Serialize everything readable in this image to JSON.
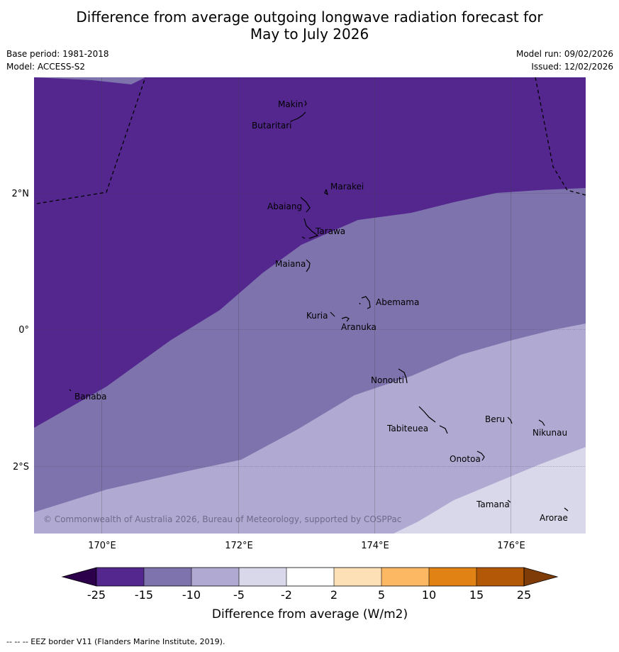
{
  "title": {
    "line1": "Difference from average outgoing longwave radiation forecast for",
    "line2": "May to July 2026"
  },
  "meta": {
    "base_period": "Base period: 1981-2018",
    "model": "Model: ACCESS-S2",
    "model_run": "Model run: 09/02/2026",
    "issued": "Issued: 12/02/2026"
  },
  "map": {
    "lon_labels": [
      "170°E",
      "172°E",
      "174°E",
      "176°E"
    ],
    "lat_labels": [
      "2°N",
      "0°",
      "2°S"
    ],
    "places": [
      "Makin",
      "Butaritari",
      "Marakei",
      "Abaiang",
      "Tarawa",
      "Maiana",
      "Abemama",
      "Kuria",
      "Aranuka",
      "Nonouti",
      "Banaba",
      "Tabiteuea",
      "Beru",
      "Nikunau",
      "Onotoa",
      "Tamana",
      "Arorae"
    ],
    "copyright": "© Commonwealth of Australia 2026, Bureau of Meteorology, supported by COSPPac",
    "colors": {
      "lt_-15": "#54278f",
      "-15_-10": "#7f73ad",
      "-10_-5": "#b0aad2",
      "-5_-2": "#d9d8ea",
      "-2_2": "#ffffff",
      "2_5": "#fee0b6",
      "5_10": "#fdb863",
      "10_15": "#e08214",
      "15_25": "#b35806",
      "under": "#2d004b",
      "over": "#7f3b08"
    }
  },
  "colorbar": {
    "ticks": [
      "-25",
      "-15",
      "-10",
      "-5",
      "-2",
      "2",
      "5",
      "10",
      "15",
      "25"
    ],
    "label": "Difference from average (W/m2)"
  },
  "footer": {
    "legend": "--  --  -- EEZ border V11 (Flanders Marine Institute, 2019)."
  }
}
